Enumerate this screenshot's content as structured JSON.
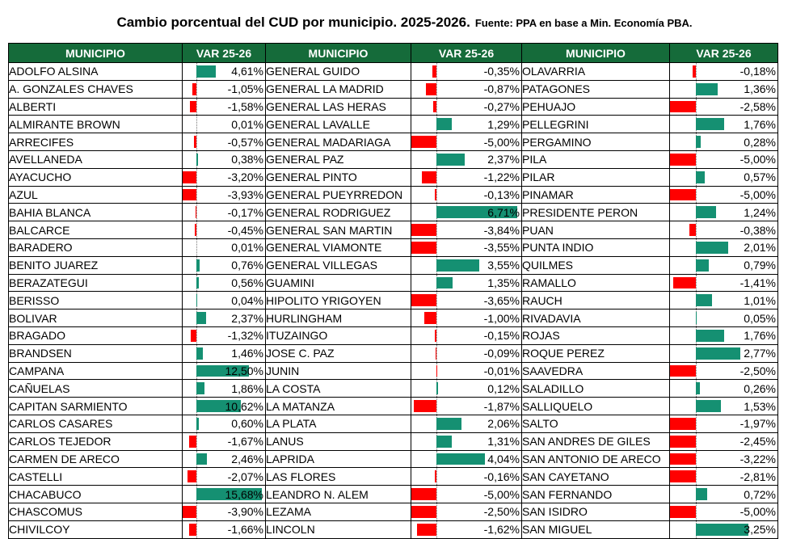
{
  "title": "Cambio porcentual del CUD por municipio. 2025-2026.",
  "source": "Fuente: PPA en base a Min. Economía PBA.",
  "headers": {
    "municipio": "MUNICIPIO",
    "var": "VAR 25-26"
  },
  "columns": [
    {
      "axis_max": 16,
      "rows": [
        {
          "name": "ADOLFO ALSINA",
          "label": "4,61%",
          "value": 4.61
        },
        {
          "name": "A. GONZALES CHAVES",
          "label": "-1,05%",
          "value": -1.05
        },
        {
          "name": "ALBERTI",
          "label": "-1,58%",
          "value": -1.58
        },
        {
          "name": "ALMIRANTE BROWN",
          "label": "0,01%",
          "value": 0.01
        },
        {
          "name": "ARRECIFES",
          "label": "-0,57%",
          "value": -0.57
        },
        {
          "name": "AVELLANEDA",
          "label": "0,38%",
          "value": 0.38
        },
        {
          "name": "AYACUCHO",
          "label": "-3,20%",
          "value": -3.2
        },
        {
          "name": "AZUL",
          "label": "-3,93%",
          "value": -3.93
        },
        {
          "name": "BAHIA BLANCA",
          "label": "-0,17%",
          "value": -0.17
        },
        {
          "name": "BALCARCE",
          "label": "-0,45%",
          "value": -0.45
        },
        {
          "name": "BARADERO",
          "label": "0,01%",
          "value": 0.01
        },
        {
          "name": "BENITO JUAREZ",
          "label": "0,76%",
          "value": 0.76
        },
        {
          "name": "BERAZATEGUI",
          "label": "0,56%",
          "value": 0.56
        },
        {
          "name": "BERISSO",
          "label": "0,04%",
          "value": 0.04
        },
        {
          "name": "BOLIVAR",
          "label": "2,37%",
          "value": 2.37
        },
        {
          "name": "BRAGADO",
          "label": "-1,32%",
          "value": -1.32
        },
        {
          "name": "BRANDSEN",
          "label": "1,46%",
          "value": 1.46
        },
        {
          "name": "CAMPANA",
          "label": "12,50%",
          "value": 12.5
        },
        {
          "name": "CAÑUELAS",
          "label": "1,86%",
          "value": 1.86
        },
        {
          "name": "CAPITAN SARMIENTO",
          "label": "10,62%",
          "value": 10.62
        },
        {
          "name": "CARLOS CASARES",
          "label": "0,60%",
          "value": 0.6
        },
        {
          "name": "CARLOS TEJEDOR",
          "label": "-1,67%",
          "value": -1.67
        },
        {
          "name": "CARMEN DE ARECO",
          "label": "2,46%",
          "value": 2.46
        },
        {
          "name": "CASTELLI",
          "label": "-2,07%",
          "value": -2.07
        },
        {
          "name": "CHACABUCO",
          "label": "15,68%",
          "value": 15.68
        },
        {
          "name": "CHASCOMUS",
          "label": "-3,90%",
          "value": -3.9
        },
        {
          "name": "CHIVILCOY",
          "label": "-1,66%",
          "value": -1.66
        }
      ]
    },
    {
      "axis_max": 7,
      "rows": [
        {
          "name": "GENERAL GUIDO",
          "label": "-0,35%",
          "value": -0.35
        },
        {
          "name": "GENERAL LA MADRID",
          "label": "-0,87%",
          "value": -0.87
        },
        {
          "name": "GENERAL LAS HERAS",
          "label": "-0,27%",
          "value": -0.27
        },
        {
          "name": "GENERAL LAVALLE",
          "label": "1,29%",
          "value": 1.29
        },
        {
          "name": "GENERAL MADARIAGA",
          "label": "-5,00%",
          "value": -5.0
        },
        {
          "name": "GENERAL PAZ",
          "label": "2,37%",
          "value": 2.37
        },
        {
          "name": "GENERAL PINTO",
          "label": "-1,22%",
          "value": -1.22
        },
        {
          "name": "GENERAL PUEYRREDON",
          "label": "-0,13%",
          "value": -0.13
        },
        {
          "name": "GENERAL RODRIGUEZ",
          "label": "6,71%",
          "value": 6.71
        },
        {
          "name": "GENERAL SAN MARTIN",
          "label": "-3,84%",
          "value": -3.84
        },
        {
          "name": "GENERAL VIAMONTE",
          "label": "-3,55%",
          "value": -3.55
        },
        {
          "name": "GENERAL VILLEGAS",
          "label": "3,55%",
          "value": 3.55
        },
        {
          "name": "GUAMINI",
          "label": "1,35%",
          "value": 1.35
        },
        {
          "name": "HIPOLITO YRIGOYEN",
          "label": "-3,65%",
          "value": -3.65
        },
        {
          "name": "HURLINGHAM",
          "label": "-1,00%",
          "value": -1.0
        },
        {
          "name": "ITUZAINGO",
          "label": "-0,15%",
          "value": -0.15
        },
        {
          "name": "JOSE C. PAZ",
          "label": "-0,09%",
          "value": -0.09
        },
        {
          "name": "JUNIN",
          "label": "-0,01%",
          "value": -0.01
        },
        {
          "name": "LA COSTA",
          "label": "0,12%",
          "value": 0.12
        },
        {
          "name": "LA MATANZA",
          "label": "-1,87%",
          "value": -1.87
        },
        {
          "name": "LA PLATA",
          "label": "2,06%",
          "value": 2.06
        },
        {
          "name": "LANUS",
          "label": "1,31%",
          "value": 1.31
        },
        {
          "name": "LAPRIDA",
          "label": "4,04%",
          "value": 4.04
        },
        {
          "name": "LAS FLORES",
          "label": "-0,16%",
          "value": -0.16
        },
        {
          "name": "LEANDRO N. ALEM",
          "label": "-5,00%",
          "value": -5.0
        },
        {
          "name": "LEZAMA",
          "label": "-2,50%",
          "value": -2.5
        },
        {
          "name": "LINCOLN",
          "label": "-1,62%",
          "value": -1.62
        }
      ]
    },
    {
      "axis_max": 5,
      "rows": [
        {
          "name": "OLAVARRIA",
          "label": "-0,18%",
          "value": -0.18
        },
        {
          "name": "PATAGONES",
          "label": "1,36%",
          "value": 1.36
        },
        {
          "name": "PEHUAJO",
          "label": "-2,58%",
          "value": -2.58
        },
        {
          "name": "PELLEGRINI",
          "label": "1,76%",
          "value": 1.76
        },
        {
          "name": "PERGAMINO",
          "label": "0,28%",
          "value": 0.28
        },
        {
          "name": "PILA",
          "label": "-5,00%",
          "value": -5.0
        },
        {
          "name": "PILAR",
          "label": "0,57%",
          "value": 0.57
        },
        {
          "name": "PINAMAR",
          "label": "-5,00%",
          "value": -5.0
        },
        {
          "name": "PRESIDENTE PERON",
          "label": "1,24%",
          "value": 1.24
        },
        {
          "name": "PUAN",
          "label": "-0,38%",
          "value": -0.38
        },
        {
          "name": "PUNTA INDIO",
          "label": "2,01%",
          "value": 2.01
        },
        {
          "name": "QUILMES",
          "label": "0,79%",
          "value": 0.79
        },
        {
          "name": "RAMALLO",
          "label": "-1,41%",
          "value": -1.41
        },
        {
          "name": "RAUCH",
          "label": "1,01%",
          "value": 1.01
        },
        {
          "name": "RIVADAVIA",
          "label": "0,05%",
          "value": 0.05
        },
        {
          "name": "ROJAS",
          "label": "1,76%",
          "value": 1.76
        },
        {
          "name": "ROQUE PEREZ",
          "label": "2,77%",
          "value": 2.77
        },
        {
          "name": "SAAVEDRA",
          "label": "-2,50%",
          "value": -2.5
        },
        {
          "name": "SALADILLO",
          "label": "0,26%",
          "value": 0.26
        },
        {
          "name": "SALLIQUELO",
          "label": "1,53%",
          "value": 1.53
        },
        {
          "name": "SALTO",
          "label": "-1,97%",
          "value": -1.97
        },
        {
          "name": "SAN ANDRES DE GILES",
          "label": "-2,45%",
          "value": -2.45
        },
        {
          "name": "SAN ANTONIO DE ARECO",
          "label": "-3,22%",
          "value": -3.22
        },
        {
          "name": "SAN CAYETANO",
          "label": "-2,81%",
          "value": -2.81
        },
        {
          "name": "SAN FERNANDO",
          "label": "0,72%",
          "value": 0.72
        },
        {
          "name": "SAN ISIDRO",
          "label": "-5,00%",
          "value": -5.0
        },
        {
          "name": "SAN MIGUEL",
          "label": "3,25%",
          "value": 3.25
        }
      ]
    }
  ]
}
